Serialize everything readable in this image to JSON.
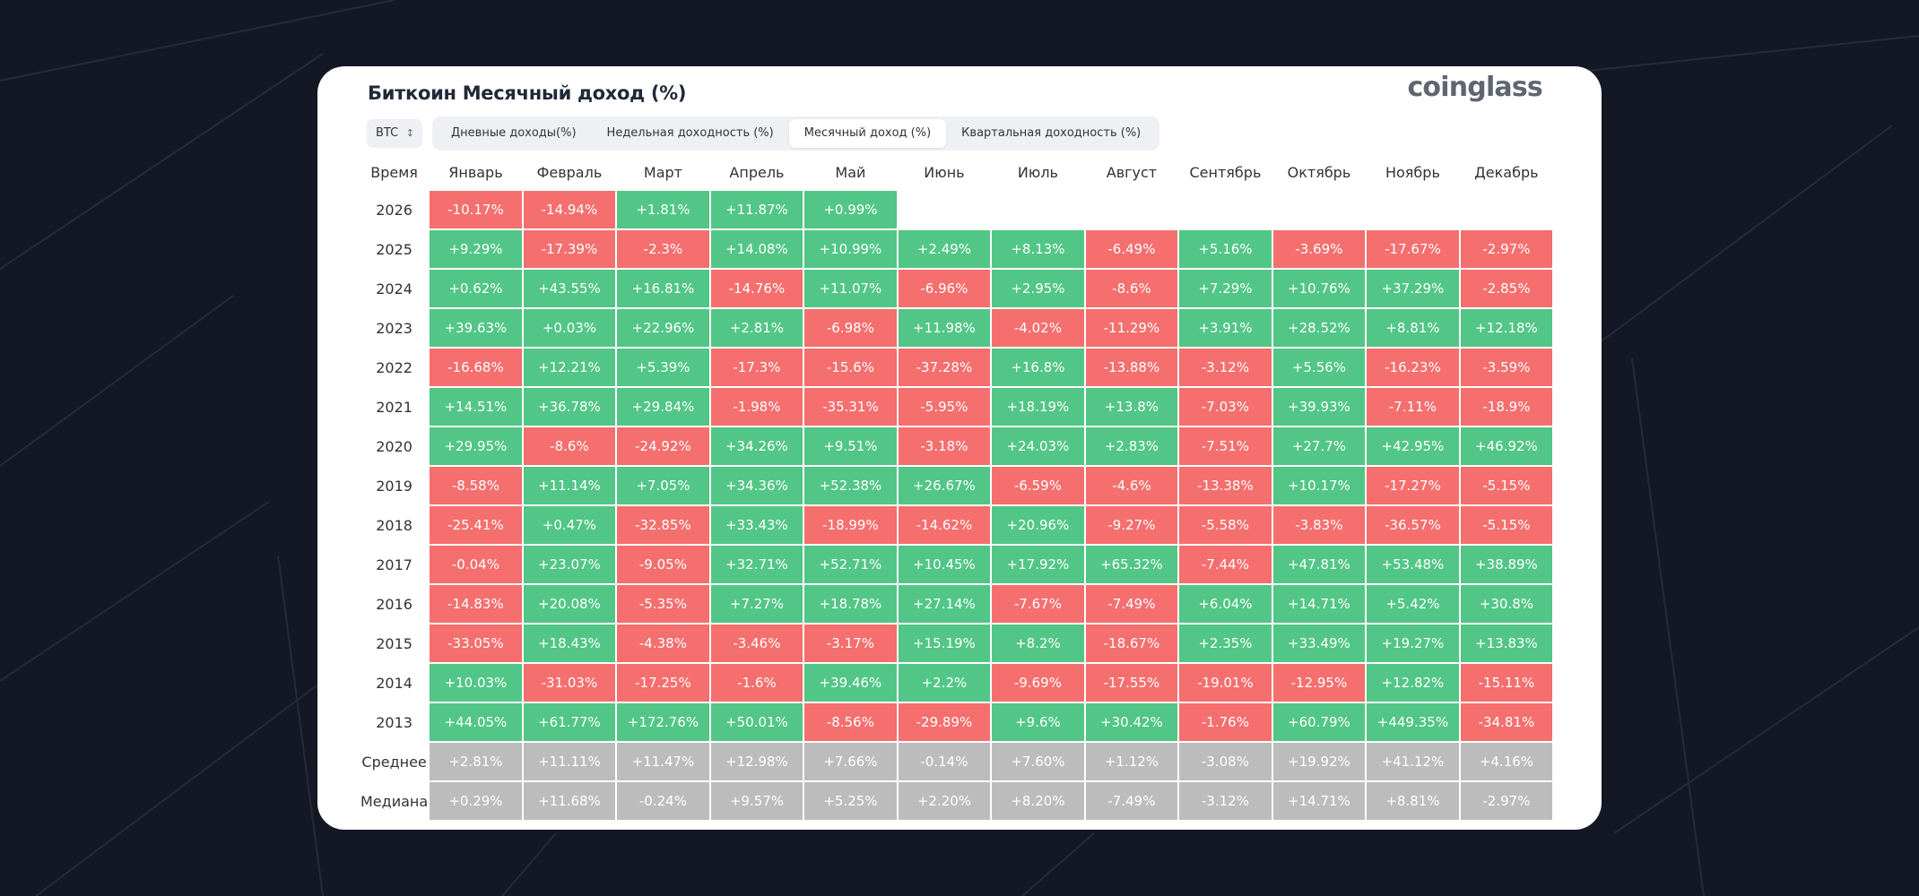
{
  "title": "Биткоин Месячный доход (%)",
  "brand": "coinglass",
  "asset_select": {
    "value": "BTC"
  },
  "tabs": [
    {
      "label": "Дневные доходы(%)",
      "active": false
    },
    {
      "label": "Недельная доходность (%)",
      "active": false
    },
    {
      "label": "Месячный доход (%)",
      "active": true
    },
    {
      "label": "Квартальная доходность (%)",
      "active": false
    }
  ],
  "colors": {
    "positive": "#52c686",
    "negative": "#f56f6f",
    "summary": "#bcbcbc",
    "background": "#141724"
  },
  "table": {
    "columns": [
      "Время",
      "Январь",
      "Февраль",
      "Март",
      "Апрель",
      "Май",
      "Июнь",
      "Июль",
      "Август",
      "Сентябрь",
      "Октябрь",
      "Ноябрь",
      "Декабрь"
    ],
    "rows": [
      {
        "label": "2026",
        "values": [
          "-10.17%",
          "-14.94%",
          "+1.81%",
          "+11.87%",
          "+0.99%",
          "",
          "",
          "",
          "",
          "",
          "",
          ""
        ]
      },
      {
        "label": "2025",
        "values": [
          "+9.29%",
          "-17.39%",
          "-2.3%",
          "+14.08%",
          "+10.99%",
          "+2.49%",
          "+8.13%",
          "-6.49%",
          "+5.16%",
          "-3.69%",
          "-17.67%",
          "-2.97%"
        ]
      },
      {
        "label": "2024",
        "values": [
          "+0.62%",
          "+43.55%",
          "+16.81%",
          "-14.76%",
          "+11.07%",
          "-6.96%",
          "+2.95%",
          "-8.6%",
          "+7.29%",
          "+10.76%",
          "+37.29%",
          "-2.85%"
        ]
      },
      {
        "label": "2023",
        "values": [
          "+39.63%",
          "+0.03%",
          "+22.96%",
          "+2.81%",
          "-6.98%",
          "+11.98%",
          "-4.02%",
          "-11.29%",
          "+3.91%",
          "+28.52%",
          "+8.81%",
          "+12.18%"
        ]
      },
      {
        "label": "2022",
        "values": [
          "-16.68%",
          "+12.21%",
          "+5.39%",
          "-17.3%",
          "-15.6%",
          "-37.28%",
          "+16.8%",
          "-13.88%",
          "-3.12%",
          "+5.56%",
          "-16.23%",
          "-3.59%"
        ]
      },
      {
        "label": "2021",
        "values": [
          "+14.51%",
          "+36.78%",
          "+29.84%",
          "-1.98%",
          "-35.31%",
          "-5.95%",
          "+18.19%",
          "+13.8%",
          "-7.03%",
          "+39.93%",
          "-7.11%",
          "-18.9%"
        ]
      },
      {
        "label": "2020",
        "values": [
          "+29.95%",
          "-8.6%",
          "-24.92%",
          "+34.26%",
          "+9.51%",
          "-3.18%",
          "+24.03%",
          "+2.83%",
          "-7.51%",
          "+27.7%",
          "+42.95%",
          "+46.92%"
        ]
      },
      {
        "label": "2019",
        "values": [
          "-8.58%",
          "+11.14%",
          "+7.05%",
          "+34.36%",
          "+52.38%",
          "+26.67%",
          "-6.59%",
          "-4.6%",
          "-13.38%",
          "+10.17%",
          "-17.27%",
          "-5.15%"
        ]
      },
      {
        "label": "2018",
        "values": [
          "-25.41%",
          "+0.47%",
          "-32.85%",
          "+33.43%",
          "-18.99%",
          "-14.62%",
          "+20.96%",
          "-9.27%",
          "-5.58%",
          "-3.83%",
          "-36.57%",
          "-5.15%"
        ]
      },
      {
        "label": "2017",
        "values": [
          "-0.04%",
          "+23.07%",
          "-9.05%",
          "+32.71%",
          "+52.71%",
          "+10.45%",
          "+17.92%",
          "+65.32%",
          "-7.44%",
          "+47.81%",
          "+53.48%",
          "+38.89%"
        ]
      },
      {
        "label": "2016",
        "values": [
          "-14.83%",
          "+20.08%",
          "-5.35%",
          "+7.27%",
          "+18.78%",
          "+27.14%",
          "-7.67%",
          "-7.49%",
          "+6.04%",
          "+14.71%",
          "+5.42%",
          "+30.8%"
        ]
      },
      {
        "label": "2015",
        "values": [
          "-33.05%",
          "+18.43%",
          "-4.38%",
          "-3.46%",
          "-3.17%",
          "+15.19%",
          "+8.2%",
          "-18.67%",
          "+2.35%",
          "+33.49%",
          "+19.27%",
          "+13.83%"
        ]
      },
      {
        "label": "2014",
        "values": [
          "+10.03%",
          "-31.03%",
          "-17.25%",
          "-1.6%",
          "+39.46%",
          "+2.2%",
          "-9.69%",
          "-17.55%",
          "-19.01%",
          "-12.95%",
          "+12.82%",
          "-15.11%"
        ]
      },
      {
        "label": "2013",
        "values": [
          "+44.05%",
          "+61.77%",
          "+172.76%",
          "+50.01%",
          "-8.56%",
          "-29.89%",
          "+9.6%",
          "+30.42%",
          "-1.76%",
          "+60.79%",
          "+449.35%",
          "-34.81%"
        ]
      },
      {
        "label": "Среднее",
        "summary": true,
        "values": [
          "+2.81%",
          "+11.11%",
          "+11.47%",
          "+12.98%",
          "+7.66%",
          "-0.14%",
          "+7.60%",
          "+1.12%",
          "-3.08%",
          "+19.92%",
          "+41.12%",
          "+4.16%"
        ]
      },
      {
        "label": "Медиана",
        "summary": true,
        "values": [
          "+0.29%",
          "+11.68%",
          "-0.24%",
          "+9.57%",
          "+5.25%",
          "+2.20%",
          "+8.20%",
          "-7.49%",
          "-3.12%",
          "+14.71%",
          "+8.81%",
          "-2.97%"
        ]
      }
    ]
  }
}
